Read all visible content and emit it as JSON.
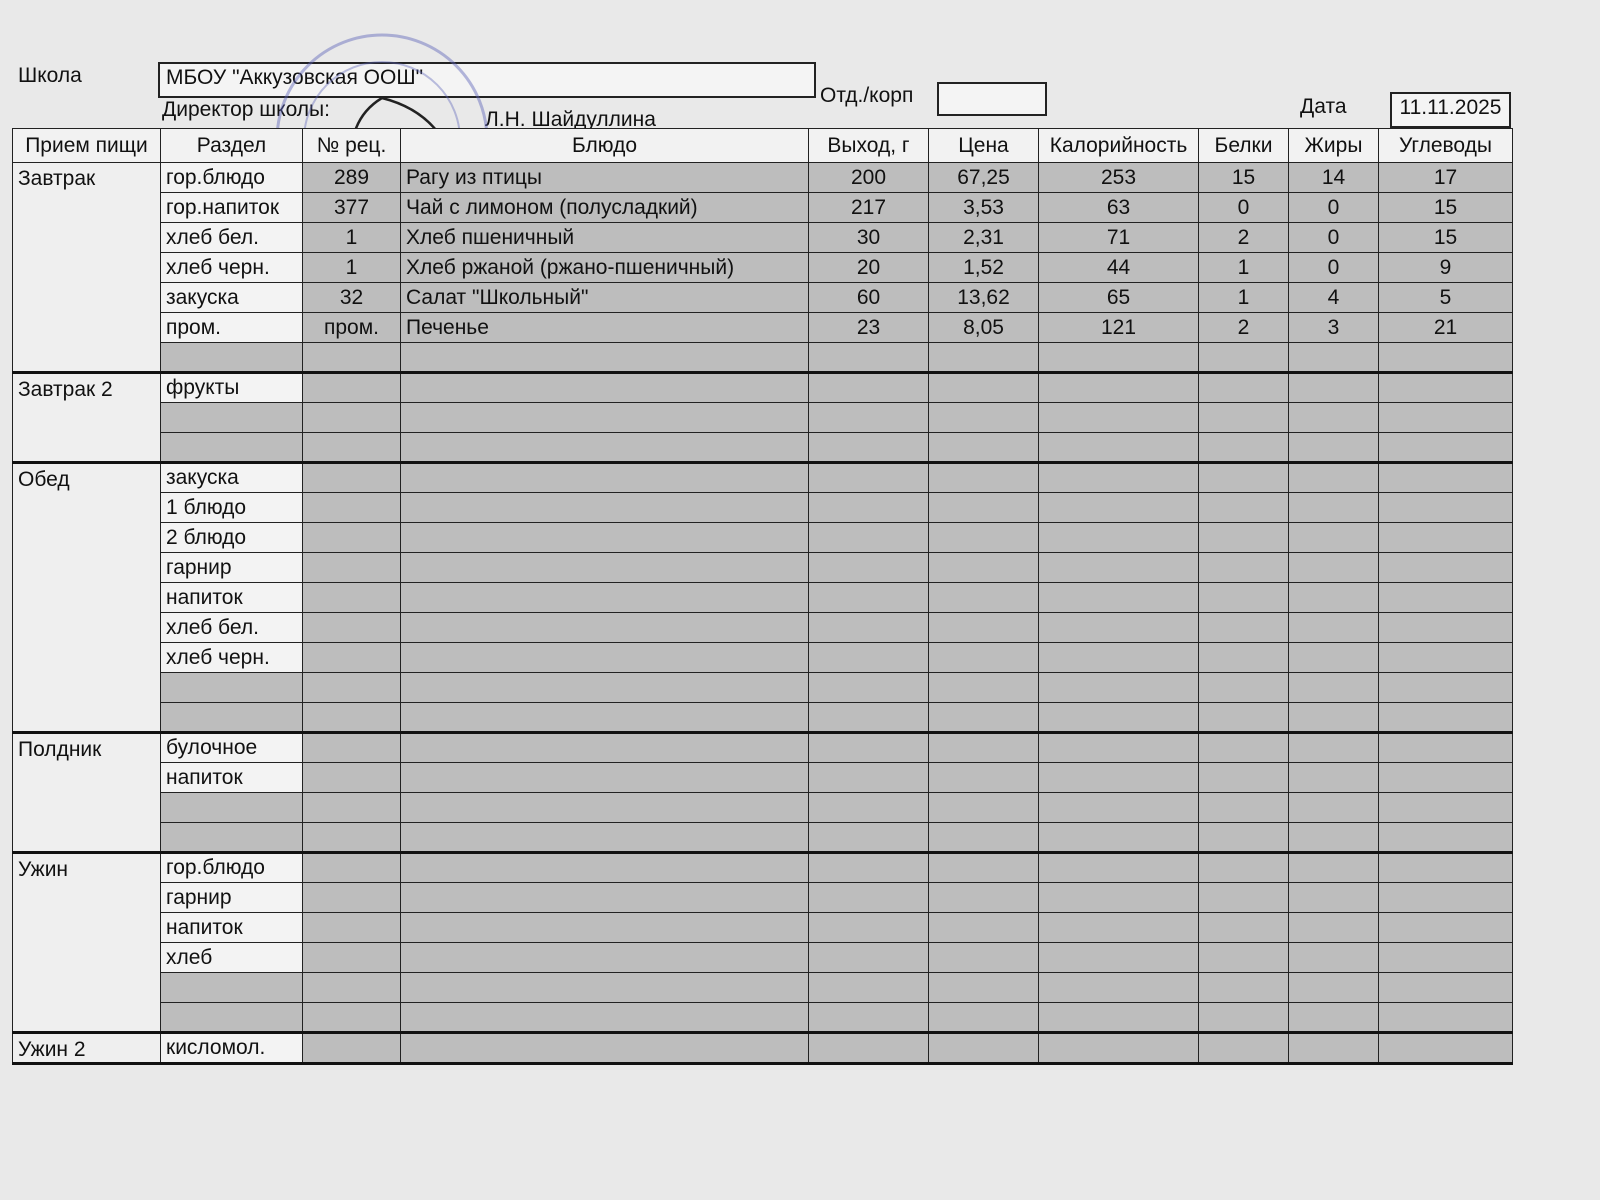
{
  "header": {
    "school_label": "Школа",
    "school": "МБОУ \"Аккузовская ООШ\"",
    "department_label": "Отд./корп",
    "director_label": "Директор школы:",
    "director": "Л.Н. Шайдуллина",
    "date_label": "Дата",
    "date": "11.11.2025"
  },
  "table": {
    "columns": [
      "Прием пищи",
      "Раздел",
      "№ рец.",
      "Блюдо",
      "Выход, г",
      "Цена",
      "Калорийность",
      "Белки",
      "Жиры",
      "Углеводы"
    ],
    "sections": [
      {
        "meal": "Завтрак",
        "rows": [
          [
            "гор.блюдо",
            289,
            "Рагу из птицы",
            200,
            "67,25",
            253,
            15,
            14,
            17
          ],
          [
            "гор.напиток",
            377,
            "Чай с лимоном (полусладкий)",
            217,
            "3,53",
            63,
            0,
            0,
            15
          ],
          [
            "хлеб бел.",
            1,
            "Хлеб пшеничный",
            30,
            "2,31",
            71,
            2,
            0,
            15
          ],
          [
            "хлеб черн.",
            1,
            "Хлеб ржаной (ржано-пшеничный)",
            20,
            "1,52",
            44,
            1,
            0,
            9
          ],
          [
            "закуска",
            32,
            "Салат \"Школьный\"",
            60,
            "13,62",
            65,
            1,
            4,
            5
          ],
          [
            "пром.",
            "пром.",
            "Печенье",
            23,
            "8,05",
            121,
            2,
            3,
            21
          ]
        ]
      },
      {
        "meal": "Завтрак 2",
        "rows": [
          [
            "фрукты"
          ]
        ]
      },
      {
        "meal": "Обед",
        "rows": [
          [
            "закуска"
          ],
          [
            "1 блюдо"
          ],
          [
            "2 блюдо"
          ],
          [
            "гарнир"
          ],
          [
            "напиток"
          ],
          [
            "хлеб бел."
          ],
          [
            "хлеб черн."
          ]
        ]
      },
      {
        "meal": "Полдник",
        "rows": [
          [
            "булочное"
          ],
          [
            "напиток"
          ]
        ]
      },
      {
        "meal": "Ужин",
        "rows": [
          [
            "гор.блюдо"
          ],
          [
            "гарнир"
          ],
          [
            "напиток"
          ],
          [
            "хлеб"
          ]
        ]
      },
      {
        "meal": "Ужин 2",
        "rows": [
          [
            "кисломол."
          ]
        ]
      }
    ]
  }
}
